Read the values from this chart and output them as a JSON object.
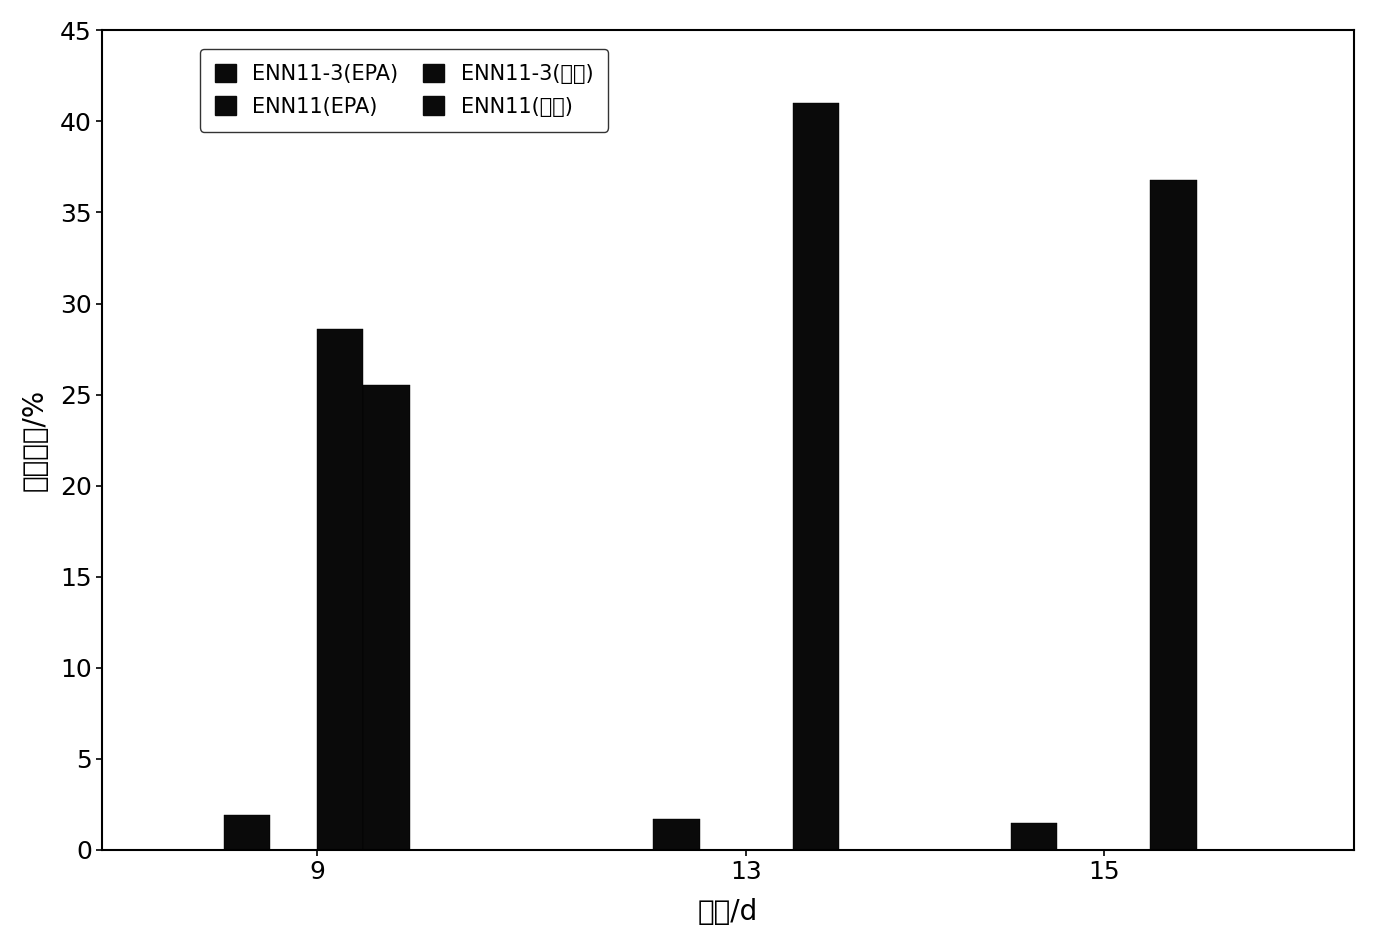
{
  "time_labels": [
    "9",
    "13",
    "15"
  ],
  "series_order": [
    "ENN11-3(EPA)",
    "ENN11(EPA)",
    "ENN11-3(总脂)",
    "ENN11(总脂)"
  ],
  "series_values": {
    "ENN11-3(EPA)": [
      1.9,
      1.7,
      1.5
    ],
    "ENN11(EPA)": [
      0.0,
      0.0,
      0.0
    ],
    "ENN11-3(总脂)": [
      28.6,
      0.0,
      0.0
    ],
    "ENN11(总脂)": [
      25.5,
      41.0,
      36.8
    ]
  },
  "bar_color": "#0a0a0a",
  "legend_labels": [
    "ENN11-3(EPA)",
    "ENN11(EPA)",
    "ENN11-3(总脂)",
    "ENN11(总脂)"
  ],
  "ylabel": "百分含量/%",
  "xlabel": "时间/d",
  "ylim": [
    0,
    45
  ],
  "yticks": [
    0,
    5,
    10,
    15,
    20,
    25,
    30,
    35,
    40,
    45
  ],
  "bar_width": 0.13,
  "group_centers": [
    1.0,
    2.2,
    3.2
  ],
  "xlim": [
    0.4,
    3.9
  ],
  "background_color": "#ffffff",
  "border_color": "#000000",
  "font_size_ticks": 18,
  "font_size_labels": 20,
  "font_size_legend": 15
}
